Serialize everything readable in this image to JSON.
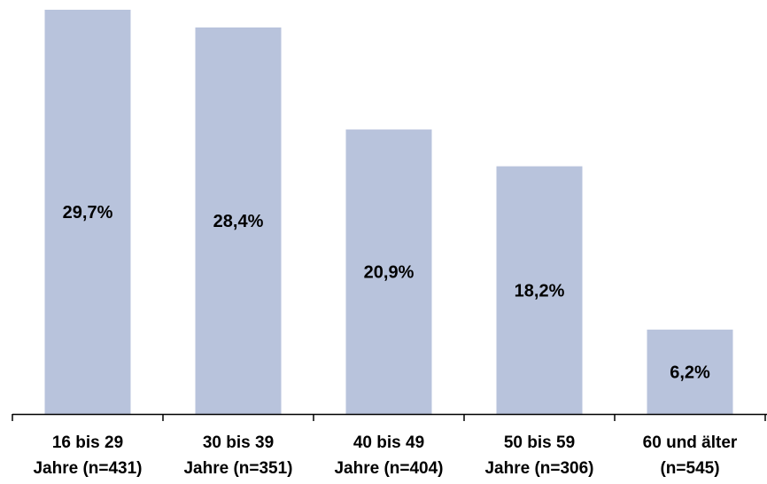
{
  "chart_data": {
    "type": "bar",
    "categories": [
      [
        "16 bis 29",
        "Jahre (n=431)"
      ],
      [
        "30 bis 39",
        "Jahre (n=351)"
      ],
      [
        "40 bis 49",
        "Jahre (n=404)"
      ],
      [
        "50 bis 59",
        "Jahre (n=306)"
      ],
      [
        "60 und älter",
        "(n=545)"
      ]
    ],
    "values": [
      29.7,
      28.4,
      20.9,
      18.2,
      6.2
    ],
    "data_labels": [
      "29,7%",
      "28,4%",
      "20,9%",
      "18,2%",
      "6,2%"
    ],
    "ylim": [
      0,
      30
    ],
    "grid": false,
    "legend": "none",
    "bar_color": "#b8c3dc",
    "axis_color": "#000000"
  }
}
